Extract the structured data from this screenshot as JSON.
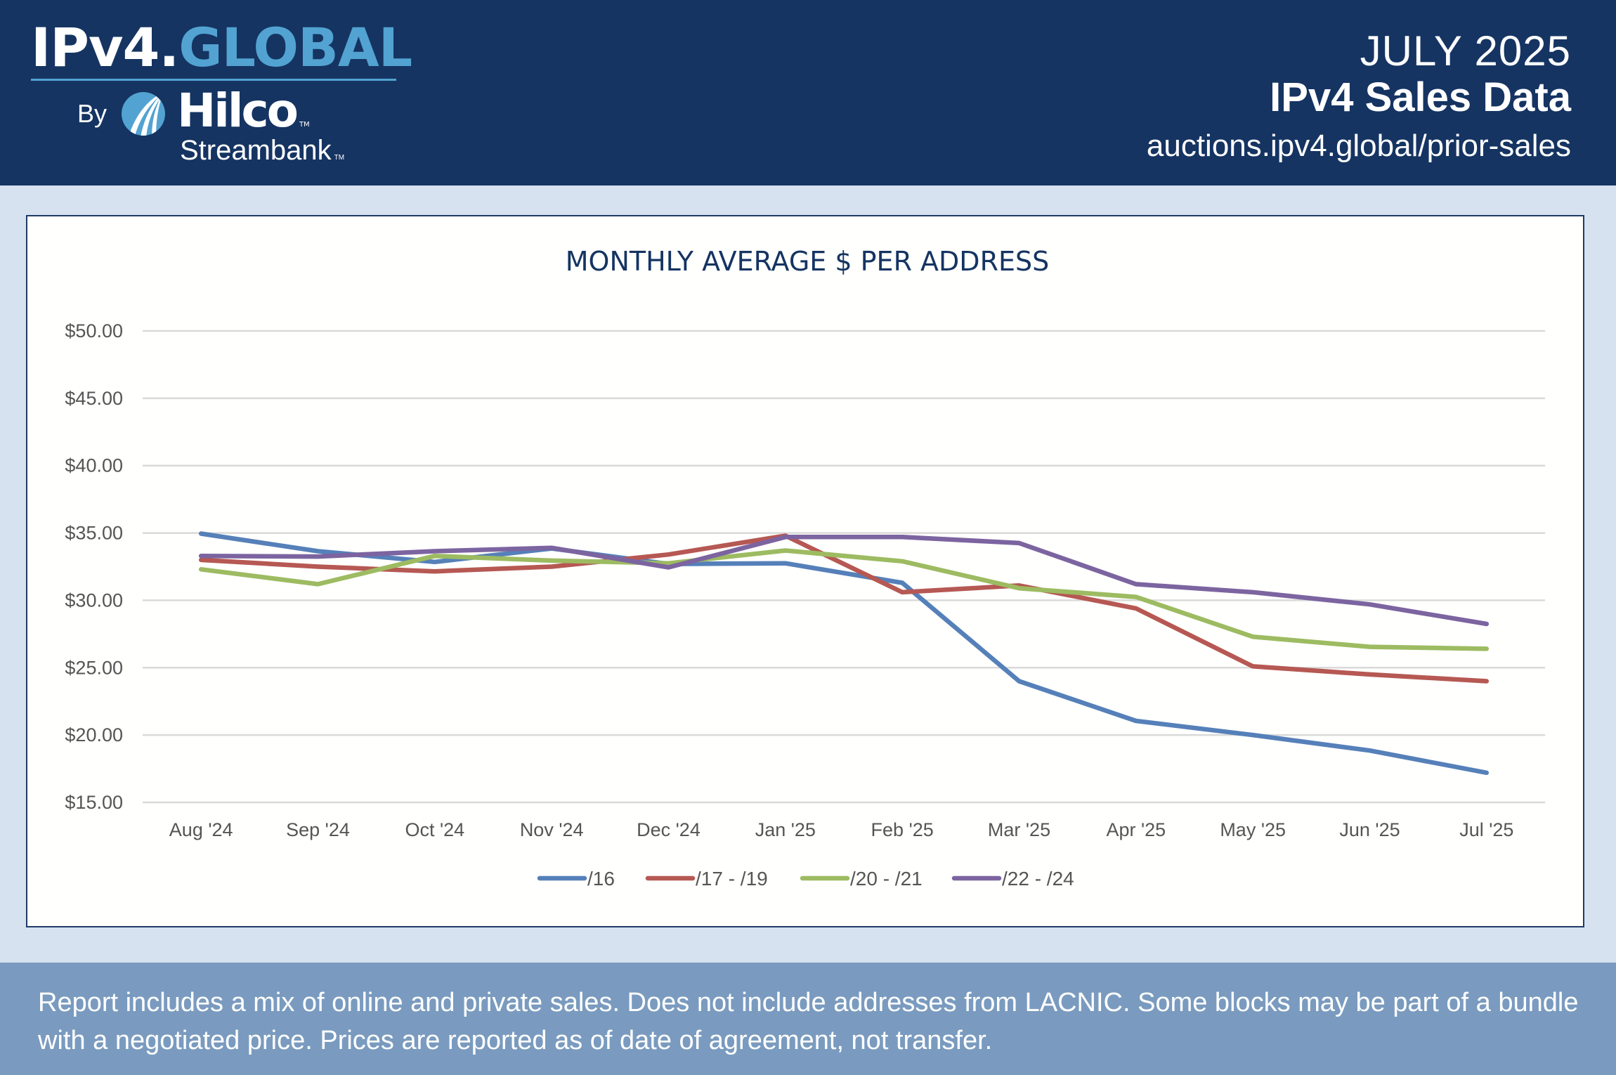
{
  "header": {
    "logo": {
      "part1": "IPv4.",
      "part2": "GLOBAL",
      "by": "By",
      "brand": "Hilco",
      "sub": "Streambank",
      "tm": "TM"
    },
    "month": "JULY 2025",
    "title": "IPv4 Sales Data",
    "url": "auctions.ipv4.global/prior-sales"
  },
  "colors": {
    "header_bg": "#153462",
    "accent": "#52a3d1",
    "page_bg": "#d6e2f0",
    "footer_bg": "#7a9bbf"
  },
  "footer": {
    "note": "Report includes a mix of online and private sales. Does not include addresses from LACNIC. Some blocks may be part of a bundle with a negotiated price. Prices are reported as of date of agreement, not transfer."
  },
  "chart_data": {
    "type": "line",
    "title": "MONTHLY AVERAGE $ PER ADDRESS",
    "xlabel": "",
    "ylabel": "",
    "ylim": [
      15,
      50
    ],
    "yticks": [
      15,
      20,
      25,
      30,
      35,
      40,
      45,
      50
    ],
    "ytick_labels": [
      "$15.00",
      "$20.00",
      "$25.00",
      "$30.00",
      "$35.00",
      "$40.00",
      "$45.00",
      "$50.00"
    ],
    "grid": true,
    "legend": "bottom",
    "categories": [
      "Aug '24",
      "Sep '24",
      "Oct '24",
      "Nov '24",
      "Dec '24",
      "Jan '25",
      "Feb '25",
      "Mar '25",
      "Apr '25",
      "May '25",
      "Jun '25",
      "Jul '25"
    ],
    "series": [
      {
        "name": "/16",
        "color": "#5580b9",
        "values": [
          34.95,
          33.65,
          32.85,
          33.85,
          32.7,
          32.75,
          31.3,
          24.0,
          21.05,
          20.0,
          18.85,
          17.2
        ]
      },
      {
        "name": "/17 - /19",
        "color": "#b65853",
        "values": [
          33.0,
          32.5,
          32.15,
          32.5,
          33.4,
          34.8,
          30.6,
          31.1,
          29.4,
          25.1,
          24.5,
          24.0
        ]
      },
      {
        "name": "/20 - /21",
        "color": "#9dbb61",
        "values": [
          32.3,
          31.2,
          33.3,
          32.95,
          32.75,
          33.7,
          32.9,
          30.9,
          30.25,
          27.3,
          26.55,
          26.4
        ]
      },
      {
        "name": "/22 - /24",
        "color": "#7c64a0",
        "values": [
          33.3,
          33.25,
          33.65,
          33.9,
          32.45,
          34.7,
          34.7,
          34.25,
          31.2,
          30.6,
          29.7,
          28.25
        ]
      }
    ]
  }
}
